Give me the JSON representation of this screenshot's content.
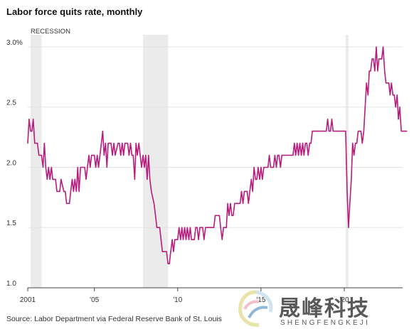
{
  "title": "Labor force quits rate, monthly",
  "source": "Source: Labor Department via Federal Reserve Bank of St. Louis",
  "watermark": {
    "main": "晟峰科技",
    "sub": "SHENGFENGKEJI"
  },
  "colors": {
    "line": "#b81c7c",
    "recession": "#ebebeb",
    "grid": "#e3e3e3",
    "axis": "#444444"
  },
  "chart_data": {
    "type": "line",
    "title": "Labor force quits rate, monthly",
    "xlabel": "",
    "ylabel": "",
    "x_range": [
      2001.0,
      2023.5
    ],
    "ylim": [
      1.0,
      3.1
    ],
    "y_ticks": [
      1.0,
      1.5,
      2.0,
      2.5,
      3.0
    ],
    "y_tick_labels": [
      "1.0",
      "1.5",
      "2.0",
      "2.5",
      "3.0%"
    ],
    "x_ticks": [
      2001,
      2005,
      2010,
      2015,
      2020
    ],
    "x_tick_labels": [
      "2001",
      "'05",
      "'10",
      "'15",
      "'20"
    ],
    "grid": true,
    "recession_label": "RECESSION",
    "recessions": [
      [
        2001.17,
        2001.83
      ],
      [
        2007.92,
        2009.42
      ],
      [
        2020.08,
        2020.25
      ]
    ],
    "series": [
      {
        "points": [
          [
            2001.0,
            2.2
          ],
          [
            2001.08,
            2.4
          ],
          [
            2001.17,
            2.3
          ],
          [
            2001.25,
            2.3
          ],
          [
            2001.33,
            2.4
          ],
          [
            2001.42,
            2.2
          ],
          [
            2001.58,
            2.2
          ],
          [
            2001.67,
            2.1
          ],
          [
            2001.83,
            2.1
          ],
          [
            2001.92,
            2.0
          ],
          [
            2002.0,
            2.2
          ],
          [
            2002.08,
            2.0
          ],
          [
            2002.17,
            1.9
          ],
          [
            2002.25,
            2.0
          ],
          [
            2002.33,
            1.9
          ],
          [
            2002.42,
            2.0
          ],
          [
            2002.5,
            1.9
          ],
          [
            2002.67,
            1.9
          ],
          [
            2002.75,
            1.8
          ],
          [
            2002.92,
            1.8
          ],
          [
            2003.0,
            1.9
          ],
          [
            2003.17,
            1.8
          ],
          [
            2003.25,
            1.8
          ],
          [
            2003.33,
            1.7
          ],
          [
            2003.5,
            1.7
          ],
          [
            2003.58,
            1.8
          ],
          [
            2003.67,
            1.9
          ],
          [
            2003.75,
            1.8
          ],
          [
            2003.83,
            1.9
          ],
          [
            2003.92,
            1.8
          ],
          [
            2004.0,
            2.0
          ],
          [
            2004.08,
            1.8
          ],
          [
            2004.17,
            2.0
          ],
          [
            2004.42,
            2.0
          ],
          [
            2004.5,
            1.9
          ],
          [
            2004.58,
            2.0
          ],
          [
            2004.67,
            2.1
          ],
          [
            2004.75,
            2.0
          ],
          [
            2004.83,
            2.1
          ],
          [
            2005.0,
            2.1
          ],
          [
            2005.08,
            2.0
          ],
          [
            2005.17,
            2.1
          ],
          [
            2005.25,
            2.0
          ],
          [
            2005.42,
            2.2
          ],
          [
            2005.5,
            2.3
          ],
          [
            2005.58,
            2.1
          ],
          [
            2005.67,
            2.2
          ],
          [
            2005.75,
            2.0
          ],
          [
            2005.83,
            2.2
          ],
          [
            2006.0,
            2.2
          ],
          [
            2006.08,
            2.1
          ],
          [
            2006.17,
            2.2
          ],
          [
            2006.25,
            2.1
          ],
          [
            2006.42,
            2.2
          ],
          [
            2006.5,
            2.2
          ],
          [
            2006.58,
            2.1
          ],
          [
            2006.67,
            2.2
          ],
          [
            2006.75,
            2.1
          ],
          [
            2006.83,
            2.2
          ],
          [
            2007.0,
            2.2
          ],
          [
            2007.08,
            2.1
          ],
          [
            2007.17,
            2.2
          ],
          [
            2007.25,
            2.1
          ],
          [
            2007.33,
            2.1
          ],
          [
            2007.42,
            1.9
          ],
          [
            2007.5,
            2.2
          ],
          [
            2007.58,
            2.1
          ],
          [
            2007.67,
            2.2
          ],
          [
            2007.75,
            2.1
          ],
          [
            2007.83,
            2.0
          ],
          [
            2007.92,
            2.1
          ],
          [
            2008.0,
            2.0
          ],
          [
            2008.08,
            2.1
          ],
          [
            2008.17,
            1.9
          ],
          [
            2008.25,
            2.1
          ],
          [
            2008.33,
            1.9
          ],
          [
            2008.42,
            1.8
          ],
          [
            2008.58,
            1.7
          ],
          [
            2008.67,
            1.6
          ],
          [
            2008.75,
            1.5
          ],
          [
            2008.92,
            1.5
          ],
          [
            2009.0,
            1.4
          ],
          [
            2009.08,
            1.3
          ],
          [
            2009.33,
            1.3
          ],
          [
            2009.42,
            1.2
          ],
          [
            2009.5,
            1.2
          ],
          [
            2009.58,
            1.3
          ],
          [
            2009.67,
            1.4
          ],
          [
            2009.75,
            1.3
          ],
          [
            2009.83,
            1.4
          ],
          [
            2009.92,
            1.4
          ],
          [
            2010.0,
            1.4
          ],
          [
            2010.08,
            1.5
          ],
          [
            2010.17,
            1.4
          ],
          [
            2010.25,
            1.5
          ],
          [
            2010.33,
            1.4
          ],
          [
            2010.42,
            1.5
          ],
          [
            2010.5,
            1.4
          ],
          [
            2010.58,
            1.5
          ],
          [
            2010.67,
            1.4
          ],
          [
            2010.75,
            1.5
          ],
          [
            2010.83,
            1.4
          ],
          [
            2010.92,
            1.4
          ],
          [
            2011.0,
            1.4
          ],
          [
            2011.08,
            1.5
          ],
          [
            2011.17,
            1.5
          ],
          [
            2011.25,
            1.4
          ],
          [
            2011.33,
            1.5
          ],
          [
            2011.5,
            1.5
          ],
          [
            2011.58,
            1.4
          ],
          [
            2011.67,
            1.5
          ],
          [
            2012.0,
            1.5
          ],
          [
            2012.17,
            1.5
          ],
          [
            2012.25,
            1.6
          ],
          [
            2012.5,
            1.6
          ],
          [
            2012.58,
            1.5
          ],
          [
            2012.67,
            1.4
          ],
          [
            2012.75,
            1.5
          ],
          [
            2012.83,
            1.5
          ],
          [
            2012.92,
            1.5
          ],
          [
            2013.0,
            1.7
          ],
          [
            2013.08,
            1.6
          ],
          [
            2013.17,
            1.7
          ],
          [
            2013.25,
            1.6
          ],
          [
            2013.33,
            1.6
          ],
          [
            2013.42,
            1.7
          ],
          [
            2013.5,
            1.7
          ],
          [
            2013.58,
            1.7
          ],
          [
            2013.67,
            1.7
          ],
          [
            2013.75,
            1.7
          ],
          [
            2013.83,
            1.8
          ],
          [
            2013.92,
            1.7
          ],
          [
            2014.0,
            1.8
          ],
          [
            2014.08,
            1.8
          ],
          [
            2014.17,
            1.8
          ],
          [
            2014.25,
            1.7
          ],
          [
            2014.33,
            1.8
          ],
          [
            2014.42,
            1.9
          ],
          [
            2014.5,
            1.8
          ],
          [
            2014.58,
            2.0
          ],
          [
            2014.67,
            1.9
          ],
          [
            2014.75,
            1.9
          ],
          [
            2014.83,
            2.0
          ],
          [
            2014.92,
            1.9
          ],
          [
            2015.0,
            2.0
          ],
          [
            2015.08,
            1.9
          ],
          [
            2015.17,
            2.0
          ],
          [
            2015.42,
            2.0
          ],
          [
            2015.5,
            2.1
          ],
          [
            2015.58,
            2.0
          ],
          [
            2015.67,
            2.0
          ],
          [
            2015.75,
            2.0
          ],
          [
            2015.83,
            2.1
          ],
          [
            2015.92,
            2.0
          ],
          [
            2016.0,
            2.1
          ],
          [
            2016.08,
            2.1
          ],
          [
            2016.17,
            2.0
          ],
          [
            2016.25,
            2.1
          ],
          [
            2016.33,
            2.1
          ],
          [
            2016.5,
            2.1
          ],
          [
            2016.58,
            2.1
          ],
          [
            2016.67,
            2.1
          ],
          [
            2016.75,
            2.1
          ],
          [
            2016.83,
            2.1
          ],
          [
            2016.92,
            2.1
          ],
          [
            2017.0,
            2.2
          ],
          [
            2017.08,
            2.1
          ],
          [
            2017.17,
            2.2
          ],
          [
            2017.25,
            2.1
          ],
          [
            2017.33,
            2.2
          ],
          [
            2017.42,
            2.1
          ],
          [
            2017.5,
            2.2
          ],
          [
            2017.58,
            2.1
          ],
          [
            2017.67,
            2.2
          ],
          [
            2017.75,
            2.2
          ],
          [
            2017.83,
            2.1
          ],
          [
            2017.92,
            2.2
          ],
          [
            2018.0,
            2.2
          ],
          [
            2018.08,
            2.3
          ],
          [
            2018.17,
            2.3
          ],
          [
            2018.25,
            2.3
          ],
          [
            2018.33,
            2.3
          ],
          [
            2018.42,
            2.3
          ],
          [
            2018.58,
            2.3
          ],
          [
            2018.67,
            2.3
          ],
          [
            2018.83,
            2.3
          ],
          [
            2018.92,
            2.3
          ],
          [
            2019.0,
            2.4
          ],
          [
            2019.08,
            2.3
          ],
          [
            2019.17,
            2.3
          ],
          [
            2019.25,
            2.4
          ],
          [
            2019.33,
            2.3
          ],
          [
            2019.5,
            2.3
          ],
          [
            2019.67,
            2.3
          ],
          [
            2019.83,
            2.3
          ],
          [
            2019.92,
            2.3
          ],
          [
            2020.0,
            2.3
          ],
          [
            2020.08,
            2.3
          ],
          [
            2020.17,
            1.8
          ],
          [
            2020.25,
            1.5
          ],
          [
            2020.33,
            1.7
          ],
          [
            2020.42,
            1.9
          ],
          [
            2020.5,
            2.2
          ],
          [
            2020.58,
            2.1
          ],
          [
            2020.67,
            2.2
          ],
          [
            2020.75,
            2.2
          ],
          [
            2020.83,
            2.3
          ],
          [
            2020.92,
            2.3
          ],
          [
            2021.0,
            2.3
          ],
          [
            2021.08,
            2.2
          ],
          [
            2021.17,
            2.3
          ],
          [
            2021.25,
            2.5
          ],
          [
            2021.33,
            2.7
          ],
          [
            2021.42,
            2.6
          ],
          [
            2021.5,
            2.8
          ],
          [
            2021.58,
            2.8
          ],
          [
            2021.67,
            2.9
          ],
          [
            2021.75,
            2.9
          ],
          [
            2021.83,
            2.8
          ],
          [
            2021.92,
            3.0
          ],
          [
            2022.0,
            2.8
          ],
          [
            2022.08,
            2.9
          ],
          [
            2022.17,
            2.9
          ],
          [
            2022.25,
            2.9
          ],
          [
            2022.33,
            3.0
          ],
          [
            2022.42,
            2.8
          ],
          [
            2022.5,
            2.7
          ],
          [
            2022.58,
            2.7
          ],
          [
            2022.67,
            2.7
          ],
          [
            2022.75,
            2.6
          ],
          [
            2022.83,
            2.7
          ],
          [
            2022.92,
            2.6
          ],
          [
            2023.0,
            2.6
          ],
          [
            2023.08,
            2.5
          ],
          [
            2023.17,
            2.6
          ],
          [
            2023.25,
            2.4
          ],
          [
            2023.33,
            2.5
          ],
          [
            2023.42,
            2.3
          ],
          [
            2023.5,
            2.3
          ],
          [
            2023.58,
            2.3
          ],
          [
            2023.75,
            2.3
          ]
        ]
      }
    ]
  }
}
